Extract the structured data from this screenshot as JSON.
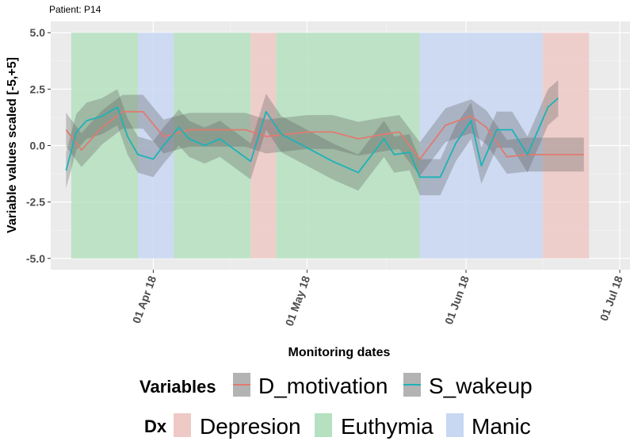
{
  "subtitle": "Patient: P14",
  "chart_data": {
    "type": "line",
    "title": "",
    "xlabel": "Monitoring dates",
    "ylabel": "Variable values scaled [-5,+5]",
    "xlim": [
      "2018-03-12",
      "2018-07-03"
    ],
    "ylim": [
      -5.5,
      5.5
    ],
    "y_ticks": [
      {
        "value": -5,
        "label": "-5.0"
      },
      {
        "value": -2.5,
        "label": "-2.5"
      },
      {
        "value": 0,
        "label": "0.0"
      },
      {
        "value": 2.5,
        "label": "2.5"
      },
      {
        "value": 5,
        "label": "5.0"
      }
    ],
    "x_ticks": [
      {
        "value": "2018-04-01",
        "label": "01 Apr 18"
      },
      {
        "value": "2018-05-01",
        "label": "01 May 18"
      },
      {
        "value": "2018-06-01",
        "label": "01 Jun 18"
      },
      {
        "value": "2018-07-01",
        "label": "01 Jul 18"
      }
    ],
    "grid": true,
    "legend_position": "bottom",
    "dx_periods": [
      {
        "dx": "Euthymia",
        "start": "2018-03-16",
        "end": "2018-03-29"
      },
      {
        "dx": "Manic",
        "start": "2018-03-29",
        "end": "2018-04-05"
      },
      {
        "dx": "Euthymia",
        "start": "2018-04-05",
        "end": "2018-04-20"
      },
      {
        "dx": "Depresion",
        "start": "2018-04-20",
        "end": "2018-04-25"
      },
      {
        "dx": "Euthymia",
        "start": "2018-04-25",
        "end": "2018-05-23"
      },
      {
        "dx": "Manic",
        "start": "2018-05-23",
        "end": "2018-06-16"
      },
      {
        "dx": "Depresion",
        "start": "2018-06-16",
        "end": "2018-06-25"
      }
    ],
    "series": [
      {
        "name": "D_motivation",
        "color": "#e07b70",
        "x": [
          "2018-03-15",
          "2018-03-18",
          "2018-03-22",
          "2018-03-26",
          "2018-03-30",
          "2018-04-03",
          "2018-04-08",
          "2018-04-14",
          "2018-04-19",
          "2018-04-23",
          "2018-04-27",
          "2018-05-01",
          "2018-05-06",
          "2018-05-11",
          "2018-05-16",
          "2018-05-19",
          "2018-05-23",
          "2018-05-28",
          "2018-06-02",
          "2018-06-05",
          "2018-06-09",
          "2018-06-13",
          "2018-06-17",
          "2018-06-21",
          "2018-06-24"
        ],
        "y": [
          0.7,
          -0.2,
          0.8,
          1.5,
          1.5,
          0.4,
          0.7,
          0.7,
          0.7,
          0.4,
          0.5,
          0.6,
          0.6,
          0.3,
          0.5,
          0.6,
          -0.6,
          0.9,
          1.3,
          0.8,
          -0.5,
          -0.4,
          -0.4,
          -0.4,
          -0.4
        ],
        "band": 0.75
      },
      {
        "name": "S_wakeup",
        "color": "#1bb3b8",
        "x": [
          "2018-03-15",
          "2018-03-17",
          "2018-03-19",
          "2018-03-22",
          "2018-03-25",
          "2018-03-27",
          "2018-03-29",
          "2018-04-01",
          "2018-04-03",
          "2018-04-06",
          "2018-04-08",
          "2018-04-11",
          "2018-04-14",
          "2018-04-17",
          "2018-04-20",
          "2018-04-23",
          "2018-04-26",
          "2018-05-01",
          "2018-05-06",
          "2018-05-11",
          "2018-05-16",
          "2018-05-18",
          "2018-05-21",
          "2018-05-23",
          "2018-05-27",
          "2018-05-30",
          "2018-06-02",
          "2018-06-04",
          "2018-06-07",
          "2018-06-10",
          "2018-06-13",
          "2018-06-17",
          "2018-06-19"
        ],
        "y": [
          -1.1,
          0.6,
          1.1,
          1.3,
          1.7,
          0.4,
          -0.4,
          -0.6,
          0.0,
          0.8,
          0.3,
          0.0,
          0.3,
          -0.2,
          -0.7,
          1.5,
          0.5,
          -0.1,
          -0.7,
          -1.2,
          0.3,
          -0.4,
          -0.3,
          -1.4,
          -1.4,
          0.1,
          1.1,
          -0.9,
          0.7,
          0.7,
          -0.4,
          1.7,
          2.1
        ],
        "band": 0.8
      }
    ]
  },
  "legend": {
    "variables_title": "Variables",
    "variables": [
      {
        "label": "D_motivation",
        "color": "#e07b70"
      },
      {
        "label": "S_wakeup",
        "color": "#1bb3b8"
      }
    ],
    "dx_title": "Dx",
    "dx": [
      {
        "label": "Depresion",
        "color": "#efc9c6"
      },
      {
        "label": "Euthymia",
        "color": "#b5e1c0"
      },
      {
        "label": "Manic",
        "color": "#c8d7f2"
      }
    ]
  }
}
